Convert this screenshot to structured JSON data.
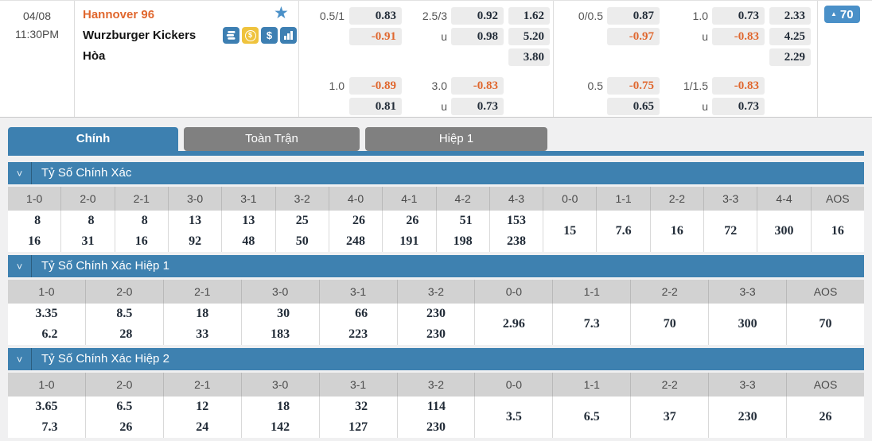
{
  "match": {
    "date": "04/08",
    "time": "11:30PM",
    "home_team": "Hannover 96",
    "away_team": "Wurzburger Kickers",
    "draw_label": "Hòa",
    "markets_count": "70"
  },
  "odds": {
    "group1": {
      "upper": {
        "hdp_line": "0.5/1",
        "hdp_top": "0.83",
        "hdp_bot": "-0.91",
        "ou_line": "2.5/3",
        "under_label": "u",
        "ou_top": "0.92",
        "ou_bot": "0.98",
        "x12_home": "1.62",
        "x12_away": "5.20",
        "x12_draw": "3.80"
      },
      "lower": {
        "hdp_line": "1.0",
        "hdp_top": "-0.89",
        "hdp_bot": "0.81",
        "ou_line": "3.0",
        "under_label": "u",
        "ou_top": "-0.83",
        "ou_bot": "0.73"
      }
    },
    "group2": {
      "upper": {
        "hdp_line": "0/0.5",
        "hdp_top": "0.87",
        "hdp_bot": "-0.97",
        "ou_line": "1.0",
        "under_label": "u",
        "ou_top": "0.73",
        "ou_bot": "-0.83",
        "x12_home": "2.33",
        "x12_away": "4.25",
        "x12_draw": "2.29"
      },
      "lower": {
        "hdp_line": "0.5",
        "hdp_top": "-0.75",
        "hdp_bot": "0.65",
        "ou_line": "1/1.5",
        "under_label": "u",
        "ou_top": "-0.83",
        "ou_bot": "0.73"
      }
    }
  },
  "tabs": [
    {
      "label": "Chính",
      "active": true
    },
    {
      "label": "Toàn Trận",
      "active": false
    },
    {
      "label": "Hiệp 1",
      "active": false
    }
  ],
  "icons": {
    "star": "★",
    "chevron_down": "˅",
    "up_arrow": "▲",
    "dollar": "$",
    "coin_dollar": "$"
  },
  "colors": {
    "accent_blue": "#3d80b0",
    "badge_blue": "#4a90c8",
    "negative_orange": "#e0672e",
    "tab_gray": "#808080"
  },
  "score_sections": [
    {
      "title": "Tỷ Số Chính Xác",
      "columns": [
        {
          "label": "1-0",
          "values": [
            "8",
            "16"
          ]
        },
        {
          "label": "2-0",
          "values": [
            "8",
            "31"
          ]
        },
        {
          "label": "2-1",
          "values": [
            "8",
            "16"
          ]
        },
        {
          "label": "3-0",
          "values": [
            "13",
            "92"
          ]
        },
        {
          "label": "3-1",
          "values": [
            "13",
            "48"
          ]
        },
        {
          "label": "3-2",
          "values": [
            "25",
            "50"
          ]
        },
        {
          "label": "4-0",
          "values": [
            "26",
            "248"
          ]
        },
        {
          "label": "4-1",
          "values": [
            "26",
            "191"
          ]
        },
        {
          "label": "4-2",
          "values": [
            "51",
            "198"
          ]
        },
        {
          "label": "4-3",
          "values": [
            "153",
            "238"
          ]
        },
        {
          "label": "0-0",
          "values": [
            "15"
          ]
        },
        {
          "label": "1-1",
          "values": [
            "7.6"
          ]
        },
        {
          "label": "2-2",
          "values": [
            "16"
          ]
        },
        {
          "label": "3-3",
          "values": [
            "72"
          ]
        },
        {
          "label": "4-4",
          "values": [
            "300"
          ]
        },
        {
          "label": "AOS",
          "values": [
            "16"
          ]
        }
      ]
    },
    {
      "title": "Tỷ Số Chính Xác Hiệp 1",
      "columns": [
        {
          "label": "1-0",
          "values": [
            "3.35",
            "6.2"
          ]
        },
        {
          "label": "2-0",
          "values": [
            "8.5",
            "28"
          ]
        },
        {
          "label": "2-1",
          "values": [
            "18",
            "33"
          ]
        },
        {
          "label": "3-0",
          "values": [
            "30",
            "183"
          ]
        },
        {
          "label": "3-1",
          "values": [
            "66",
            "223"
          ]
        },
        {
          "label": "3-2",
          "values": [
            "230",
            "230"
          ]
        },
        {
          "label": "0-0",
          "values": [
            "2.96"
          ]
        },
        {
          "label": "1-1",
          "values": [
            "7.3"
          ]
        },
        {
          "label": "2-2",
          "values": [
            "70"
          ]
        },
        {
          "label": "3-3",
          "values": [
            "300"
          ]
        },
        {
          "label": "AOS",
          "values": [
            "70"
          ]
        }
      ]
    },
    {
      "title": "Tỷ Số Chính Xác Hiệp 2",
      "columns": [
        {
          "label": "1-0",
          "values": [
            "3.65",
            "7.3"
          ]
        },
        {
          "label": "2-0",
          "values": [
            "6.5",
            "26"
          ]
        },
        {
          "label": "2-1",
          "values": [
            "12",
            "24"
          ]
        },
        {
          "label": "3-0",
          "values": [
            "18",
            "142"
          ]
        },
        {
          "label": "3-1",
          "values": [
            "32",
            "127"
          ]
        },
        {
          "label": "3-2",
          "values": [
            "114",
            "230"
          ]
        },
        {
          "label": "0-0",
          "values": [
            "3.5"
          ]
        },
        {
          "label": "1-1",
          "values": [
            "6.5"
          ]
        },
        {
          "label": "2-2",
          "values": [
            "37"
          ]
        },
        {
          "label": "3-3",
          "values": [
            "230"
          ]
        },
        {
          "label": "AOS",
          "values": [
            "26"
          ]
        }
      ]
    }
  ]
}
